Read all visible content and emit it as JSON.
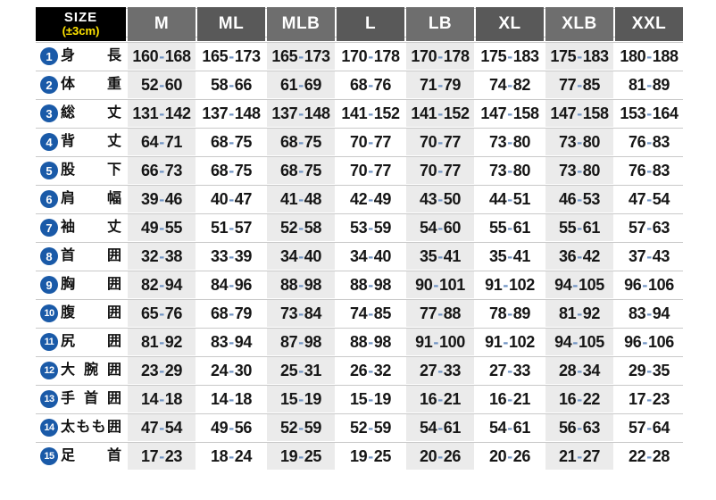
{
  "corner": {
    "title": "SIZE",
    "subtitle": "(±3cm)"
  },
  "columns": [
    "M",
    "ML",
    "MLB",
    "L",
    "LB",
    "XL",
    "XLB",
    "XXL"
  ],
  "rows": [
    {
      "num": "1",
      "label": "身長",
      "values": [
        "160-168",
        "165-173",
        "165-173",
        "170-178",
        "170-178",
        "175-183",
        "175-183",
        "180-188"
      ]
    },
    {
      "num": "2",
      "label": "体重",
      "values": [
        "52-60",
        "58-66",
        "61-69",
        "68-76",
        "71-79",
        "74-82",
        "77-85",
        "81-89"
      ]
    },
    {
      "num": "3",
      "label": "総丈",
      "values": [
        "131-142",
        "137-148",
        "137-148",
        "141-152",
        "141-152",
        "147-158",
        "147-158",
        "153-164"
      ]
    },
    {
      "num": "4",
      "label": "背丈",
      "values": [
        "64-71",
        "68-75",
        "68-75",
        "70-77",
        "70-77",
        "73-80",
        "73-80",
        "76-83"
      ]
    },
    {
      "num": "5",
      "label": "股下",
      "values": [
        "66-73",
        "68-75",
        "68-75",
        "70-77",
        "70-77",
        "73-80",
        "73-80",
        "76-83"
      ]
    },
    {
      "num": "6",
      "label": "肩幅",
      "values": [
        "39-46",
        "40-47",
        "41-48",
        "42-49",
        "43-50",
        "44-51",
        "46-53",
        "47-54"
      ]
    },
    {
      "num": "7",
      "label": "袖丈",
      "values": [
        "49-55",
        "51-57",
        "52-58",
        "53-59",
        "54-60",
        "55-61",
        "55-61",
        "57-63"
      ]
    },
    {
      "num": "8",
      "label": "首囲",
      "values": [
        "32-38",
        "33-39",
        "34-40",
        "34-40",
        "35-41",
        "35-41",
        "36-42",
        "37-43"
      ]
    },
    {
      "num": "9",
      "label": "胸囲",
      "values": [
        "82-94",
        "84-96",
        "88-98",
        "88-98",
        "90-101",
        "91-102",
        "94-105",
        "96-106"
      ]
    },
    {
      "num": "10",
      "label": "腹囲",
      "values": [
        "65-76",
        "68-79",
        "73-84",
        "74-85",
        "77-88",
        "78-89",
        "81-92",
        "83-94"
      ]
    },
    {
      "num": "11",
      "label": "尻囲",
      "values": [
        "81-92",
        "83-94",
        "87-98",
        "88-98",
        "91-100",
        "91-102",
        "94-105",
        "96-106"
      ]
    },
    {
      "num": "12",
      "label": "大腕囲",
      "values": [
        "23-29",
        "24-30",
        "25-31",
        "26-32",
        "27-33",
        "27-33",
        "28-34",
        "29-35"
      ]
    },
    {
      "num": "13",
      "label": "手首囲",
      "values": [
        "14-18",
        "14-18",
        "15-19",
        "15-19",
        "16-21",
        "16-21",
        "16-22",
        "17-23"
      ]
    },
    {
      "num": "14",
      "label": "太もも囲",
      "values": [
        "47-54",
        "49-56",
        "52-59",
        "52-59",
        "54-61",
        "54-61",
        "56-63",
        "57-64"
      ]
    },
    {
      "num": "15",
      "label": "足首",
      "values": [
        "17-23",
        "18-24",
        "19-25",
        "19-25",
        "20-26",
        "20-26",
        "21-27",
        "22-28"
      ]
    }
  ],
  "colors": {
    "header_dark": "#595959",
    "header_light": "#6e6e6e",
    "cell_gray": "#ebebeb",
    "circle_blue": "#1a5aa8",
    "dash_blue": "#6f93c4",
    "corner_bg": "#000000",
    "corner_accent": "#ffe400",
    "line": "#c9c9c9"
  }
}
